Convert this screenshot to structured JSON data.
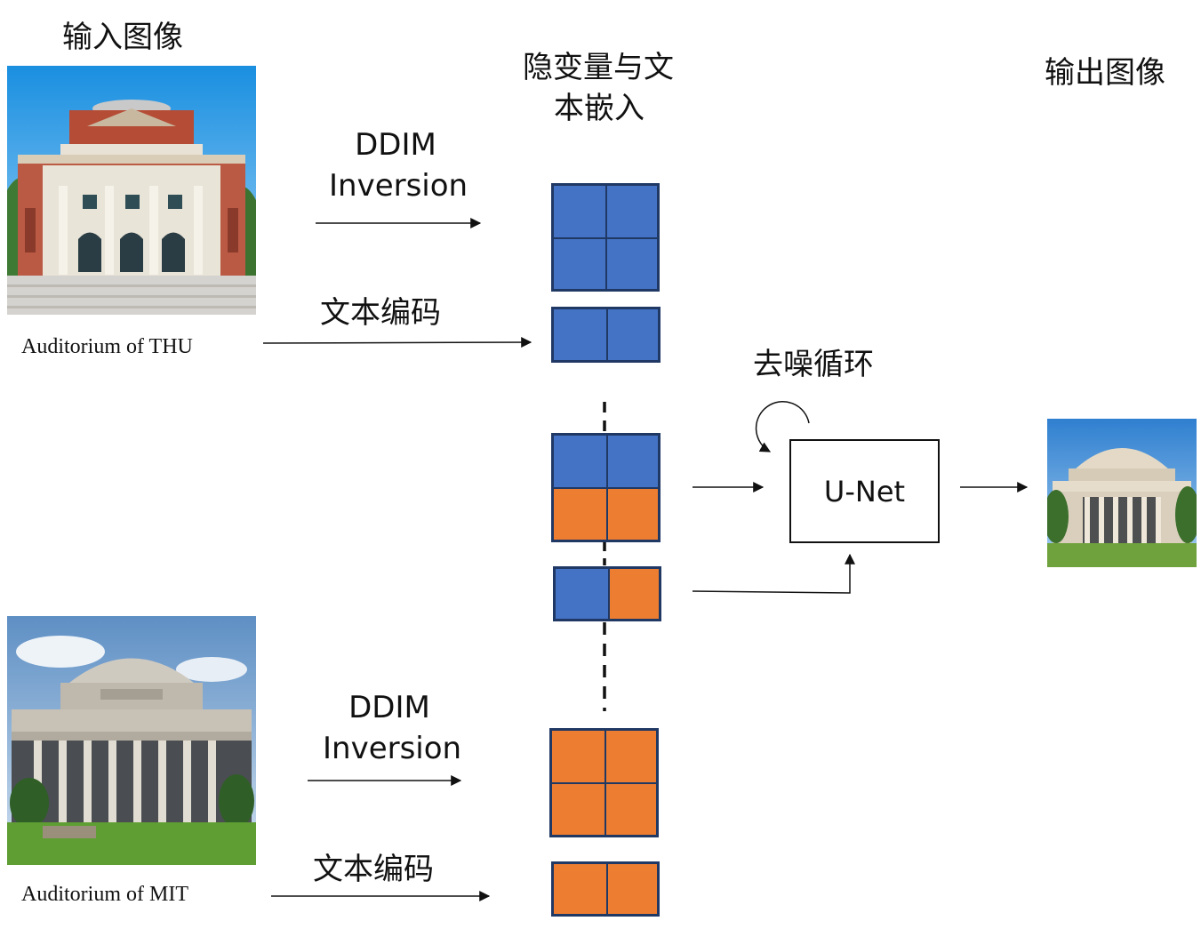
{
  "labels": {
    "input_image": "输入图像",
    "latent_text": "隐变量与文",
    "latent_text_2": "本嵌入",
    "output_image": "输出图像",
    "ddim_top_1": "DDIM",
    "ddim_top_2": "Inversion",
    "ddim_bottom_1": "DDIM",
    "ddim_bottom_2": "Inversion",
    "text_encode_top": "文本编码",
    "text_encode_bottom": "文本编码",
    "denoise_loop": "去噪循环",
    "unet": "U-Net",
    "caption_thu": "Auditorium of THU",
    "caption_mit": "Auditorium of MIT"
  },
  "colors": {
    "blue": "#4472c4",
    "orange": "#ed7d31",
    "border": "#1f3864"
  }
}
